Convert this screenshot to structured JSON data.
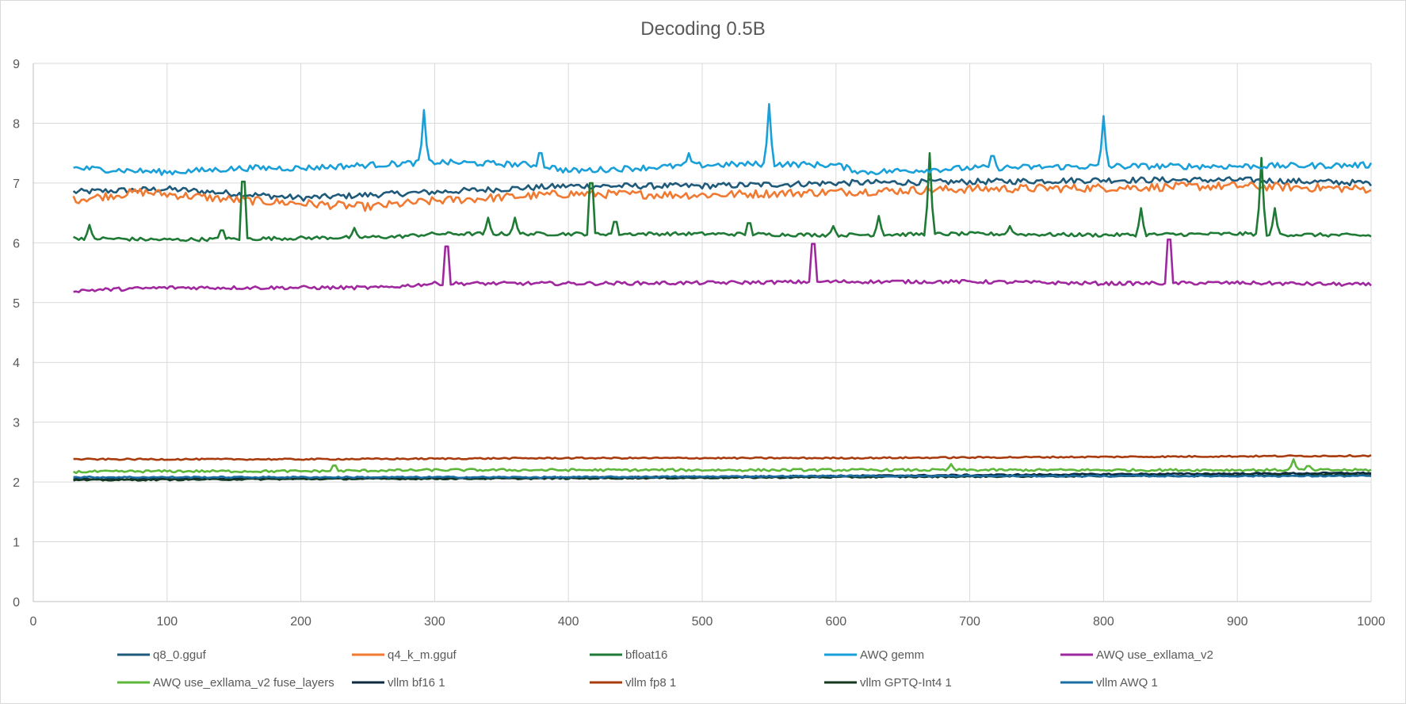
{
  "chart_data": {
    "type": "line",
    "title": "Decoding 0.5B",
    "xlabel": "",
    "ylabel": "",
    "xlim": [
      0,
      1000
    ],
    "ylim": [
      0,
      9
    ],
    "x_ticks": [
      "0",
      "100",
      "200",
      "300",
      "400",
      "500",
      "600",
      "700",
      "800",
      "900",
      "1000"
    ],
    "y_ticks": [
      "0",
      "1",
      "2",
      "3",
      "4",
      "5",
      "6",
      "7",
      "8",
      "9"
    ],
    "grid": true,
    "legend_position": "bottom",
    "x_start": 30,
    "x_end": 1000,
    "series": [
      {
        "name": "q8_0.gguf",
        "color": "#1f5a7a",
        "points": [
          [
            30,
            6.85
          ],
          [
            100,
            6.9
          ],
          [
            200,
            6.75
          ],
          [
            300,
            6.85
          ],
          [
            400,
            6.95
          ],
          [
            500,
            6.95
          ],
          [
            600,
            7.0
          ],
          [
            700,
            7.02
          ],
          [
            800,
            7.05
          ],
          [
            900,
            7.05
          ],
          [
            1000,
            7.0
          ]
        ],
        "spikes": []
      },
      {
        "name": "q4_k_m.gguf",
        "color": "#f07a32",
        "points": [
          [
            30,
            6.72
          ],
          [
            80,
            6.85
          ],
          [
            150,
            6.72
          ],
          [
            250,
            6.6
          ],
          [
            300,
            6.7
          ],
          [
            400,
            6.82
          ],
          [
            500,
            6.8
          ],
          [
            600,
            6.85
          ],
          [
            700,
            6.9
          ],
          [
            800,
            6.92
          ],
          [
            900,
            6.95
          ],
          [
            1000,
            6.9
          ]
        ],
        "spikes": []
      },
      {
        "name": "bfloat16",
        "color": "#1e7a34",
        "points": [
          [
            30,
            6.08
          ],
          [
            100,
            6.05
          ],
          [
            200,
            6.08
          ],
          [
            270,
            6.1
          ],
          [
            300,
            6.15
          ],
          [
            400,
            6.15
          ],
          [
            500,
            6.15
          ],
          [
            600,
            6.13
          ],
          [
            700,
            6.15
          ],
          [
            800,
            6.13
          ],
          [
            900,
            6.15
          ],
          [
            1000,
            6.12
          ]
        ],
        "spikes": [
          [
            42,
            6.3
          ],
          [
            141,
            6.28
          ],
          [
            157,
            7.5
          ],
          [
            240,
            6.25
          ],
          [
            340,
            6.42
          ],
          [
            360,
            6.42
          ],
          [
            417,
            7.42
          ],
          [
            435,
            6.45
          ],
          [
            535,
            6.42
          ],
          [
            598,
            6.28
          ],
          [
            632,
            6.45
          ],
          [
            670,
            7.5
          ],
          [
            730,
            6.28
          ],
          [
            828,
            6.58
          ],
          [
            918,
            7.42
          ],
          [
            928,
            6.58
          ]
        ]
      },
      {
        "name": "AWQ gemm",
        "color": "#1aa0d8",
        "points": [
          [
            30,
            7.25
          ],
          [
            100,
            7.18
          ],
          [
            160,
            7.25
          ],
          [
            200,
            7.25
          ],
          [
            300,
            7.35
          ],
          [
            380,
            7.3
          ],
          [
            400,
            7.2
          ],
          [
            500,
            7.3
          ],
          [
            550,
            7.32
          ],
          [
            600,
            7.3
          ],
          [
            620,
            7.18
          ],
          [
            700,
            7.25
          ],
          [
            800,
            7.28
          ],
          [
            900,
            7.28
          ],
          [
            1000,
            7.3
          ]
        ],
        "spikes": [
          [
            292,
            8.22
          ],
          [
            379,
            7.6
          ],
          [
            490,
            7.5
          ],
          [
            550,
            8.32
          ],
          [
            717,
            7.55
          ],
          [
            800,
            8.12
          ]
        ]
      },
      {
        "name": "AWQ use_exllama_v2",
        "color": "#a0289e",
        "points": [
          [
            30,
            5.2
          ],
          [
            100,
            5.25
          ],
          [
            200,
            5.25
          ],
          [
            260,
            5.25
          ],
          [
            300,
            5.32
          ],
          [
            400,
            5.32
          ],
          [
            500,
            5.33
          ],
          [
            600,
            5.35
          ],
          [
            700,
            5.35
          ],
          [
            800,
            5.32
          ],
          [
            900,
            5.33
          ],
          [
            1000,
            5.3
          ]
        ],
        "spikes": [
          [
            309,
            6.25
          ],
          [
            583,
            6.3
          ],
          [
            849,
            6.42
          ]
        ]
      },
      {
        "name": "AWQ use_exllama_v2 fuse_layers",
        "color": "#5cb63a",
        "points": [
          [
            30,
            2.17
          ],
          [
            100,
            2.18
          ],
          [
            200,
            2.18
          ],
          [
            300,
            2.2
          ],
          [
            400,
            2.2
          ],
          [
            500,
            2.2
          ],
          [
            600,
            2.2
          ],
          [
            700,
            2.2
          ],
          [
            800,
            2.2
          ],
          [
            900,
            2.2
          ],
          [
            1000,
            2.2
          ]
        ],
        "spikes": [
          [
            225,
            2.32
          ],
          [
            686,
            2.3
          ],
          [
            942,
            2.38
          ],
          [
            953,
            2.3
          ]
        ]
      },
      {
        "name": "vllm bf16 1",
        "color": "#0d2a40",
        "points": [
          [
            30,
            2.05
          ],
          [
            200,
            2.06
          ],
          [
            400,
            2.07
          ],
          [
            600,
            2.1
          ],
          [
            800,
            2.13
          ],
          [
            1000,
            2.15
          ]
        ],
        "spikes": []
      },
      {
        "name": "vllm fp8 1",
        "color": "#a83c0e",
        "points": [
          [
            30,
            2.38
          ],
          [
            200,
            2.38
          ],
          [
            400,
            2.4
          ],
          [
            600,
            2.4
          ],
          [
            800,
            2.42
          ],
          [
            1000,
            2.44
          ]
        ],
        "spikes": []
      },
      {
        "name": "vllm GPTQ-Int4  1",
        "color": "#143820",
        "points": [
          [
            30,
            2.03
          ],
          [
            200,
            2.05
          ],
          [
            400,
            2.06
          ],
          [
            600,
            2.08
          ],
          [
            800,
            2.1
          ],
          [
            1000,
            2.12
          ]
        ],
        "spikes": []
      },
      {
        "name": "vllm AWQ  1",
        "color": "#1b6ea3",
        "points": [
          [
            30,
            2.08
          ],
          [
            200,
            2.08
          ],
          [
            400,
            2.08
          ],
          [
            600,
            2.1
          ],
          [
            800,
            2.1
          ],
          [
            1000,
            2.1
          ]
        ],
        "spikes": []
      }
    ]
  }
}
